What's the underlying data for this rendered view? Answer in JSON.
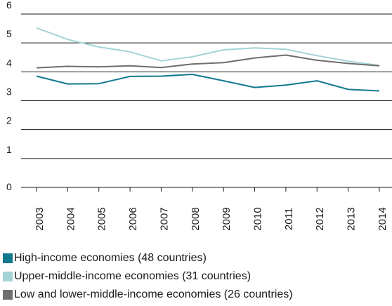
{
  "chart_data": {
    "type": "line",
    "title": "",
    "xlabel": "",
    "ylabel": "",
    "x": [
      "2003",
      "2004",
      "2005",
      "2006",
      "2007",
      "2008",
      "2009",
      "2010",
      "2011",
      "2012",
      "2013",
      "2014"
    ],
    "ylim": [
      0,
      6
    ],
    "yticks": [
      "0",
      "1",
      "2",
      "3",
      "4",
      "5",
      "6"
    ],
    "grid": "horizontal",
    "legend_position": "bottom",
    "series": [
      {
        "name": "High-income economies (48 countries)",
        "color": "#12798f",
        "values": [
          3.85,
          3.58,
          3.59,
          3.84,
          3.85,
          3.91,
          3.69,
          3.46,
          3.54,
          3.69,
          3.39,
          3.34
        ]
      },
      {
        "name": "Upper-middle-income economies (31 countries)",
        "color": "#a3d4d6",
        "values": [
          5.52,
          5.12,
          4.86,
          4.69,
          4.38,
          4.52,
          4.76,
          4.83,
          4.78,
          4.56,
          4.37,
          4.22
        ]
      },
      {
        "name": "Low and lower-middle-income economies (26 countries)",
        "color": "#6e6e6e",
        "values": [
          4.14,
          4.19,
          4.17,
          4.21,
          4.15,
          4.27,
          4.32,
          4.48,
          4.58,
          4.4,
          4.29,
          4.21
        ]
      }
    ]
  }
}
